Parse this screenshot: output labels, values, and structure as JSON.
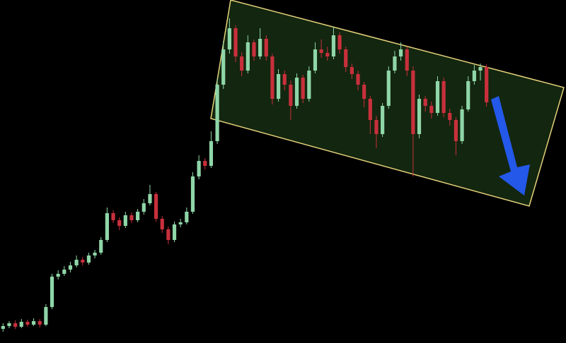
{
  "chart_data": {
    "type": "candlestick",
    "up_color": "#8fd6a8",
    "down_color": "#c8303c",
    "ylim": [
      0,
      486
    ],
    "open": [
      20,
      24,
      28,
      23,
      30,
      26,
      31,
      26,
      51,
      94,
      98,
      104,
      110,
      118,
      114,
      124,
      128,
      146,
      184,
      174,
      166,
      181,
      174,
      186,
      198,
      211,
      176,
      161,
      146,
      168,
      171,
      186,
      236,
      258,
      251,
      286,
      366,
      416,
      446,
      406,
      386,
      426,
      406,
      431,
      406,
      346,
      381,
      366,
      336,
      376,
      346,
      386,
      416,
      411,
      406,
      436,
      416,
      391,
      381,
      366,
      346,
      316,
      296,
      336,
      386,
      406,
      416,
      386,
      296,
      346,
      336,
      326,
      371,
      326,
      316,
      286,
      331,
      371,
      386,
      391
    ],
    "high": [
      28,
      31,
      32,
      34,
      33,
      35,
      34,
      55,
      98,
      103,
      109,
      115,
      124,
      122,
      128,
      132,
      150,
      192,
      188,
      178,
      186,
      185,
      190,
      204,
      224,
      214,
      180,
      165,
      172,
      176,
      192,
      242,
      266,
      262,
      300,
      375,
      428,
      460,
      450,
      412,
      436,
      430,
      446,
      436,
      410,
      388,
      386,
      372,
      382,
      380,
      392,
      426,
      430,
      420,
      448,
      440,
      420,
      396,
      386,
      370,
      350,
      322,
      340,
      392,
      414,
      426,
      420,
      392,
      352,
      350,
      342,
      378,
      376,
      332,
      320,
      336,
      378,
      394,
      396,
      395
    ],
    "low": [
      16,
      21,
      20,
      21,
      23,
      24,
      22,
      24,
      48,
      90,
      95,
      100,
      107,
      110,
      111,
      120,
      125,
      143,
      170,
      160,
      163,
      170,
      171,
      182,
      195,
      172,
      156,
      140,
      143,
      164,
      168,
      183,
      232,
      246,
      248,
      282,
      360,
      410,
      398,
      378,
      382,
      400,
      402,
      400,
      338,
      342,
      358,
      316,
      332,
      340,
      342,
      382,
      404,
      400,
      402,
      410,
      384,
      374,
      358,
      334,
      296,
      276,
      292,
      332,
      382,
      400,
      378,
      236,
      290,
      328,
      318,
      322,
      320,
      308,
      266,
      282,
      328,
      366,
      372,
      335
    ],
    "close": [
      24,
      28,
      23,
      30,
      26,
      31,
      26,
      51,
      94,
      98,
      104,
      110,
      118,
      114,
      124,
      128,
      146,
      184,
      174,
      166,
      181,
      174,
      186,
      198,
      211,
      176,
      161,
      146,
      168,
      171,
      186,
      236,
      258,
      251,
      286,
      366,
      416,
      446,
      406,
      386,
      426,
      406,
      431,
      406,
      346,
      381,
      366,
      336,
      376,
      346,
      386,
      416,
      411,
      406,
      436,
      416,
      391,
      381,
      366,
      346,
      316,
      296,
      336,
      386,
      406,
      416,
      386,
      296,
      346,
      336,
      326,
      371,
      326,
      316,
      286,
      331,
      371,
      386,
      391,
      341
    ]
  }
}
